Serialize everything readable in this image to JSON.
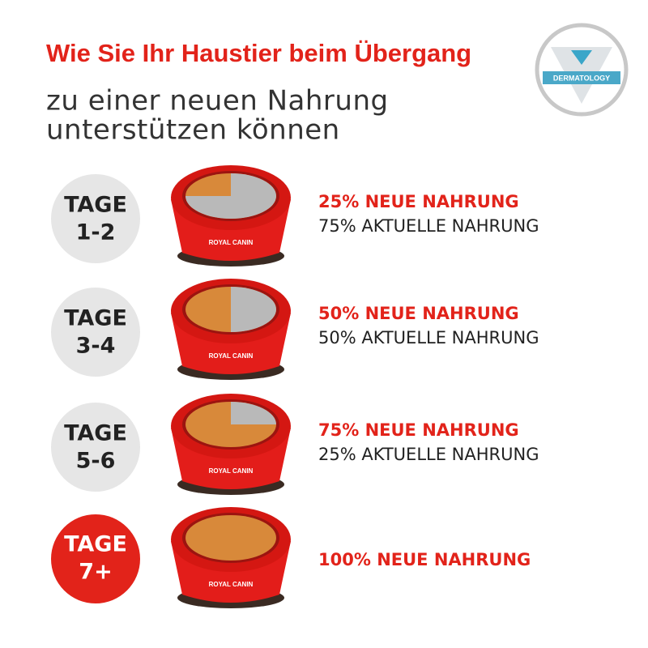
{
  "header": {
    "title": "Wie Sie Ihr Haustier beim Übergang",
    "subtitle_lines": [
      "zu einer neuen Nahrung",
      "unterstützen können"
    ],
    "badge": "DERMATOLOGY"
  },
  "brand": "ROYAL CANIN",
  "steps": [
    {
      "label": "TAGE",
      "days": "1-2",
      "new_food": "25% NEUE NAHRUNG",
      "current_food": "75% AKTUELLE NAHRUNG"
    },
    {
      "label": "TAGE",
      "days": "3-4",
      "new_food": "50% NEUE NAHRUNG",
      "current_food": "50% AKTUELLE NAHRUNG"
    },
    {
      "label": "TAGE",
      "days": "5-6",
      "new_food": "75% NEUE NAHRUNG",
      "current_food": "25% AKTUELLE NAHRUNG"
    },
    {
      "label": "TAGE",
      "days": "7+",
      "new_food": "100% NEUE NAHRUNG"
    }
  ]
}
